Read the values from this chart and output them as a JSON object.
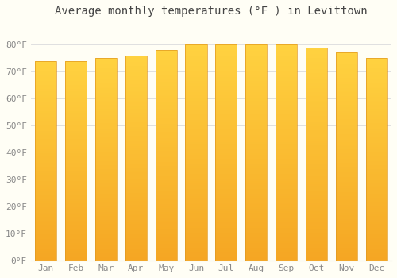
{
  "title": "Average monthly temperatures (°F ) in Levittown",
  "months": [
    "Jan",
    "Feb",
    "Mar",
    "Apr",
    "May",
    "Jun",
    "Jul",
    "Aug",
    "Sep",
    "Oct",
    "Nov",
    "Dec"
  ],
  "values": [
    74,
    74,
    75,
    76,
    78,
    80,
    80,
    80,
    80,
    79,
    77,
    75
  ],
  "bar_color_bottom": "#F5A623",
  "bar_color_top": "#FFD040",
  "background_color": "#fffef5",
  "grid_color": "#e0e0e0",
  "ytick_labels": [
    "0°F",
    "10°F",
    "20°F",
    "30°F",
    "40°F",
    "50°F",
    "60°F",
    "70°F",
    "80°F"
  ],
  "ytick_values": [
    0,
    10,
    20,
    30,
    40,
    50,
    60,
    70,
    80
  ],
  "ylim": [
    0,
    88
  ],
  "title_fontsize": 10,
  "tick_fontsize": 8,
  "font_color": "#888888",
  "bar_width": 0.72,
  "bar_edge_color": "#E09820",
  "bar_edge_width": 0.5
}
